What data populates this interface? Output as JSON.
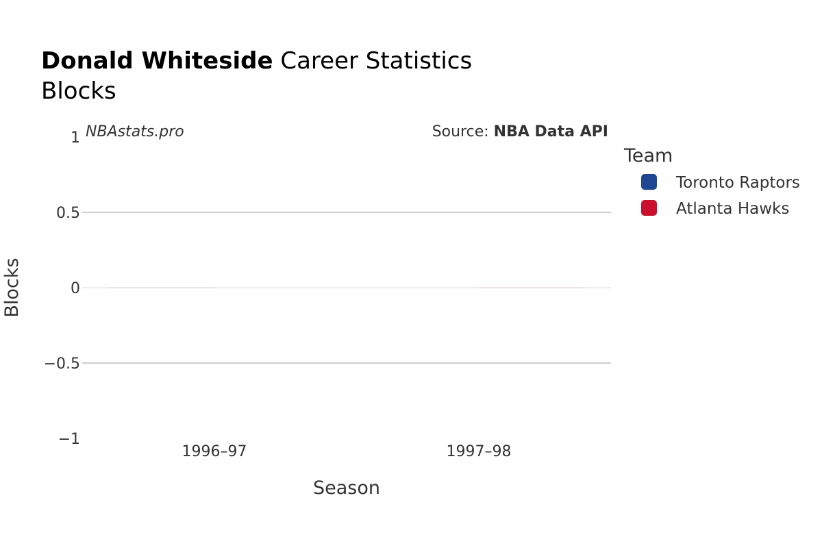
{
  "title": {
    "player": "Donald Whiteside",
    "rest": " Career Statistics",
    "subtitle": "Blocks"
  },
  "watermark": "NBAstats.pro",
  "source": {
    "prefix": "Source: ",
    "name": "NBA Data API"
  },
  "legend": {
    "title": "Team",
    "items": [
      {
        "label": "Toronto Raptors",
        "color": "#1f4690"
      },
      {
        "label": "Atlanta Hawks",
        "color": "#c8102e"
      }
    ]
  },
  "chart_data": {
    "type": "bar",
    "title": "Donald Whiteside Career Statistics",
    "subtitle": "Blocks",
    "xlabel": "Season",
    "ylabel": "Blocks",
    "categories": [
      "1996–97",
      "1997–98"
    ],
    "series": [
      {
        "name": "Toronto Raptors",
        "color": "#1f4690",
        "values": [
          0,
          null
        ]
      },
      {
        "name": "Atlanta Hawks",
        "color": "#c8102e",
        "values": [
          null,
          0
        ]
      }
    ],
    "ylim": [
      -1,
      1
    ],
    "yticks": [
      -1,
      -0.5,
      0,
      0.5,
      1
    ],
    "ytick_labels": [
      "−1",
      "−0.5",
      "0",
      "0.5",
      "1"
    ],
    "grid": true,
    "legend_position": "right"
  }
}
